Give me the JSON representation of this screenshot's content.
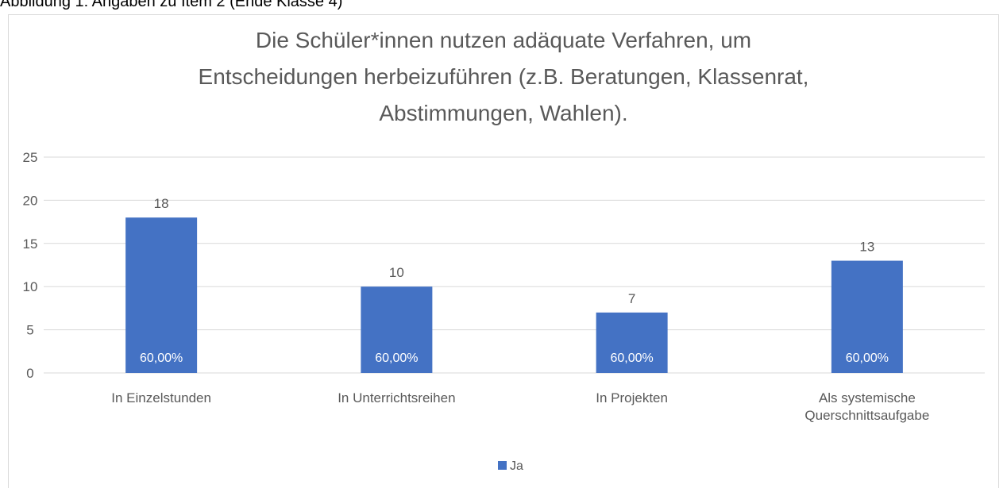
{
  "caption": "Abbildung 1: Angaben zu Item 2 (Ende Klasse 4)",
  "chart_data": {
    "type": "bar",
    "title_lines": [
      "Die Schüler*innen nutzen adäquate Verfahren, um",
      "Entscheidungen herbeizuführen (z.B. Beratungen, Klassenrat,",
      "Abstimmungen, Wahlen)."
    ],
    "categories": [
      "In Einzelstunden",
      "In Unterrichtsreihen",
      "In Projekten",
      "Als systemische Querschnittsaufgabe"
    ],
    "series": [
      {
        "name": "Ja",
        "color": "#4472c4",
        "values": [
          18,
          10,
          7,
          13
        ],
        "inner_labels": [
          "60,00%",
          "60,00%",
          "60,00%",
          "60,00%"
        ]
      }
    ],
    "ylim": [
      0,
      25
    ],
    "yticks": [
      0,
      5,
      10,
      15,
      20,
      25
    ],
    "grid": true,
    "legend": "bottom"
  }
}
